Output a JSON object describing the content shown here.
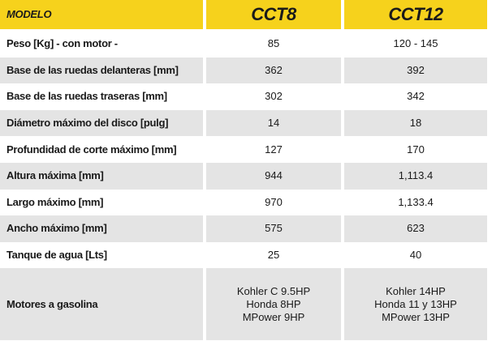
{
  "table": {
    "header": [
      "MODELO",
      "CCT8",
      "CCT12"
    ],
    "rows": [
      [
        "Peso [Kg] - con motor -",
        85,
        "120 - 145"
      ],
      [
        "Base de las ruedas delanteras [mm]",
        362,
        392
      ],
      [
        "Base de las ruedas traseras [mm]",
        302,
        342
      ],
      [
        "Diámetro máximo del disco [pulg]",
        14,
        18
      ],
      [
        "Profundidad de corte máximo [mm]",
        127,
        170
      ],
      [
        "Altura máxima [mm]",
        944,
        "1,113.4"
      ],
      [
        "Largo máximo [mm]",
        970,
        "1,133.4"
      ],
      [
        "Ancho máximo [mm]",
        575,
        623
      ],
      [
        "Tanque de agua [Lts]",
        25,
        40
      ],
      [
        "Motores a gasolina",
        [
          "Kohler C 9.5HP",
          "Honda 8HP",
          "MPower 9HP"
        ],
        [
          "Kohler 14HP",
          "Honda 11 y 13HP",
          "MPower 13HP"
        ]
      ]
    ]
  }
}
